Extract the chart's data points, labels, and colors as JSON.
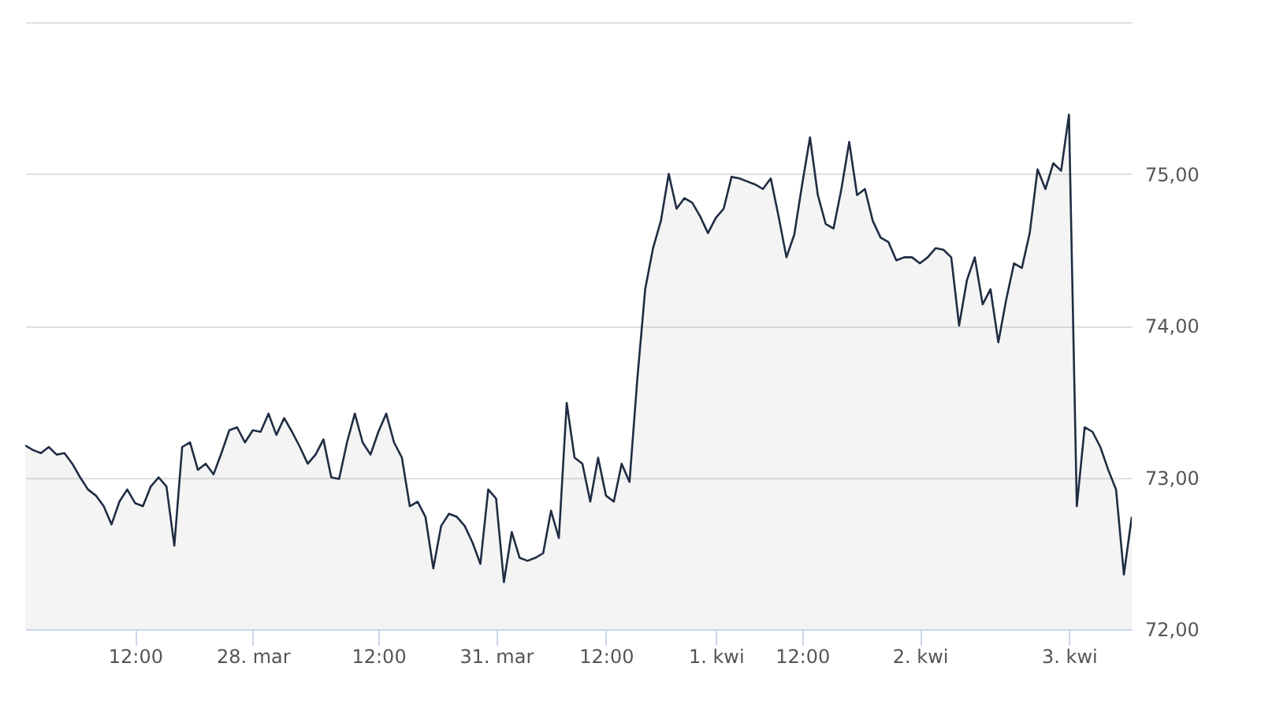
{
  "chart_data": {
    "type": "area",
    "categories": [
      null,
      null,
      null,
      null,
      null,
      null,
      null,
      null,
      null,
      null,
      null,
      null,
      null,
      null,
      "12:00",
      null,
      null,
      null,
      null,
      null,
      null,
      null,
      null,
      null,
      null,
      null,
      null,
      null,
      null,
      "28. mar",
      null,
      null,
      null,
      null,
      null,
      null,
      null,
      null,
      null,
      null,
      null,
      null,
      null,
      null,
      null,
      "12:00",
      null,
      null,
      null,
      null,
      null,
      null,
      null,
      null,
      null,
      null,
      null,
      null,
      null,
      null,
      "31. mar",
      null,
      null,
      null,
      null,
      null,
      null,
      null,
      null,
      null,
      null,
      null,
      null,
      null,
      "12:00",
      null,
      null,
      null,
      null,
      null,
      null,
      null,
      null,
      null,
      null,
      null,
      null,
      null,
      "1. kwi",
      null,
      null,
      null,
      null,
      null,
      null,
      null,
      null,
      null,
      null,
      "12:00",
      null,
      null,
      null,
      null,
      null,
      null,
      null,
      null,
      null,
      null,
      null,
      null,
      null,
      null,
      "2. kwi",
      null,
      null,
      null,
      null,
      null,
      null,
      null,
      null,
      null,
      null,
      null,
      null,
      null,
      null,
      null,
      null,
      null,
      null,
      "3. kwi",
      null,
      null,
      null,
      null,
      null,
      null,
      null,
      null
    ],
    "series": [
      {
        "color": "#1f2d42",
        "values": [
          73.21,
          73.18,
          73.16,
          73.2,
          73.15,
          73.16,
          73.09,
          73.0,
          72.92,
          72.88,
          72.81,
          72.69,
          72.84,
          72.92,
          72.83,
          72.81,
          72.94,
          73.0,
          72.94,
          72.55,
          73.2,
          73.23,
          73.05,
          73.09,
          73.02,
          73.16,
          73.31,
          73.33,
          73.23,
          73.31,
          73.3,
          73.42,
          73.28,
          73.39,
          73.3,
          73.2,
          73.09,
          73.15,
          73.25,
          73.0,
          72.99,
          73.23,
          73.42,
          73.23,
          73.15,
          73.3,
          73.42,
          73.23,
          73.13,
          72.81,
          72.84,
          72.74,
          72.4,
          72.68,
          72.76,
          72.74,
          72.68,
          72.57,
          72.43,
          72.92,
          72.86,
          72.31,
          72.64,
          72.47,
          72.45,
          72.47,
          72.5,
          72.78,
          72.6,
          73.49,
          73.13,
          73.09,
          72.84,
          73.13,
          72.88,
          72.84,
          73.09,
          72.97,
          73.65,
          74.24,
          74.51,
          74.69,
          75.0,
          74.77,
          74.84,
          74.81,
          74.72,
          74.61,
          74.71,
          74.77,
          74.98,
          74.97,
          74.95,
          74.93,
          74.9,
          74.97,
          74.72,
          74.45,
          74.6,
          74.93,
          75.24,
          74.86,
          74.67,
          74.64,
          74.9,
          75.21,
          74.86,
          74.9,
          74.69,
          74.58,
          74.55,
          74.43,
          74.45,
          74.45,
          74.41,
          74.45,
          74.51,
          74.5,
          74.45,
          74.0,
          74.3,
          74.45,
          74.14,
          74.24,
          73.89,
          74.17,
          74.41,
          74.38,
          74.61,
          75.03,
          74.9,
          75.07,
          75.02,
          75.39,
          72.81,
          73.33,
          73.3,
          73.2,
          73.05,
          72.92,
          72.36,
          72.74
        ]
      }
    ],
    "ylim": [
      72,
      76
    ],
    "yticks": [
      {
        "value": 72,
        "label": "72,00"
      },
      {
        "value": 73,
        "label": "73,00"
      },
      {
        "value": 74,
        "label": "74,00"
      },
      {
        "value": 75,
        "label": "75,00"
      },
      {
        "value": 76,
        "label": null
      }
    ],
    "grid": "y"
  }
}
